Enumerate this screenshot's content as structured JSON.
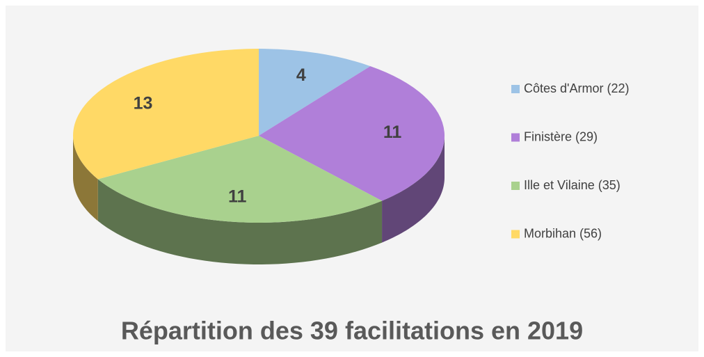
{
  "chart_data": {
    "type": "pie3d",
    "title": "Répartition des 39 facilitations en 2019",
    "categories": [
      "Côtes d'Armor (22)",
      "Finistère (29)",
      "Ille et Vilaine (35)",
      "Morbihan (56)"
    ],
    "values": [
      4,
      11,
      11,
      13
    ],
    "colors": [
      "#9dc3e6",
      "#b07fd9",
      "#a9d18e",
      "#ffd966"
    ],
    "legend": "right"
  }
}
